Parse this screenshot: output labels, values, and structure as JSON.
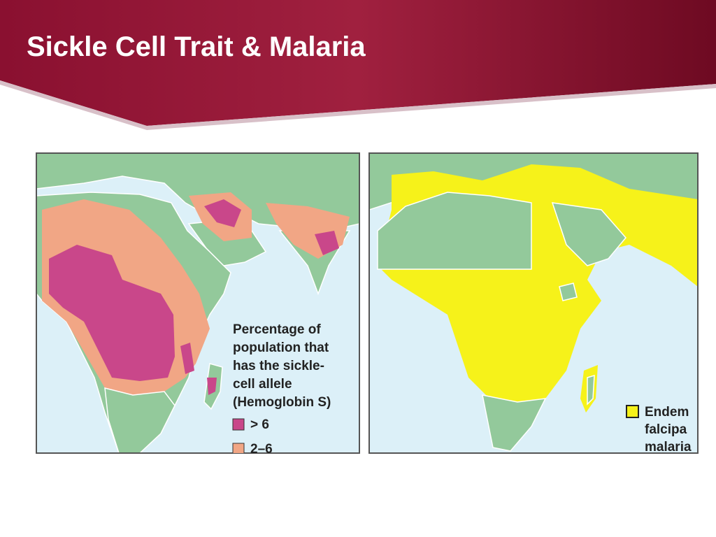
{
  "header": {
    "title": "Sickle Cell Trait & Malaria"
  },
  "left_map": {
    "legend": {
      "title_lines": [
        "Percentage of",
        "population that",
        "has the sickle-",
        "cell allele",
        "(Hemoglobin S)"
      ],
      "items": [
        {
          "label": "> 6"
        },
        {
          "label": "2–6"
        }
      ]
    }
  },
  "right_map": {
    "legend": {
      "lines": [
        "Endem",
        "falcipa",
        "malaria"
      ]
    }
  }
}
